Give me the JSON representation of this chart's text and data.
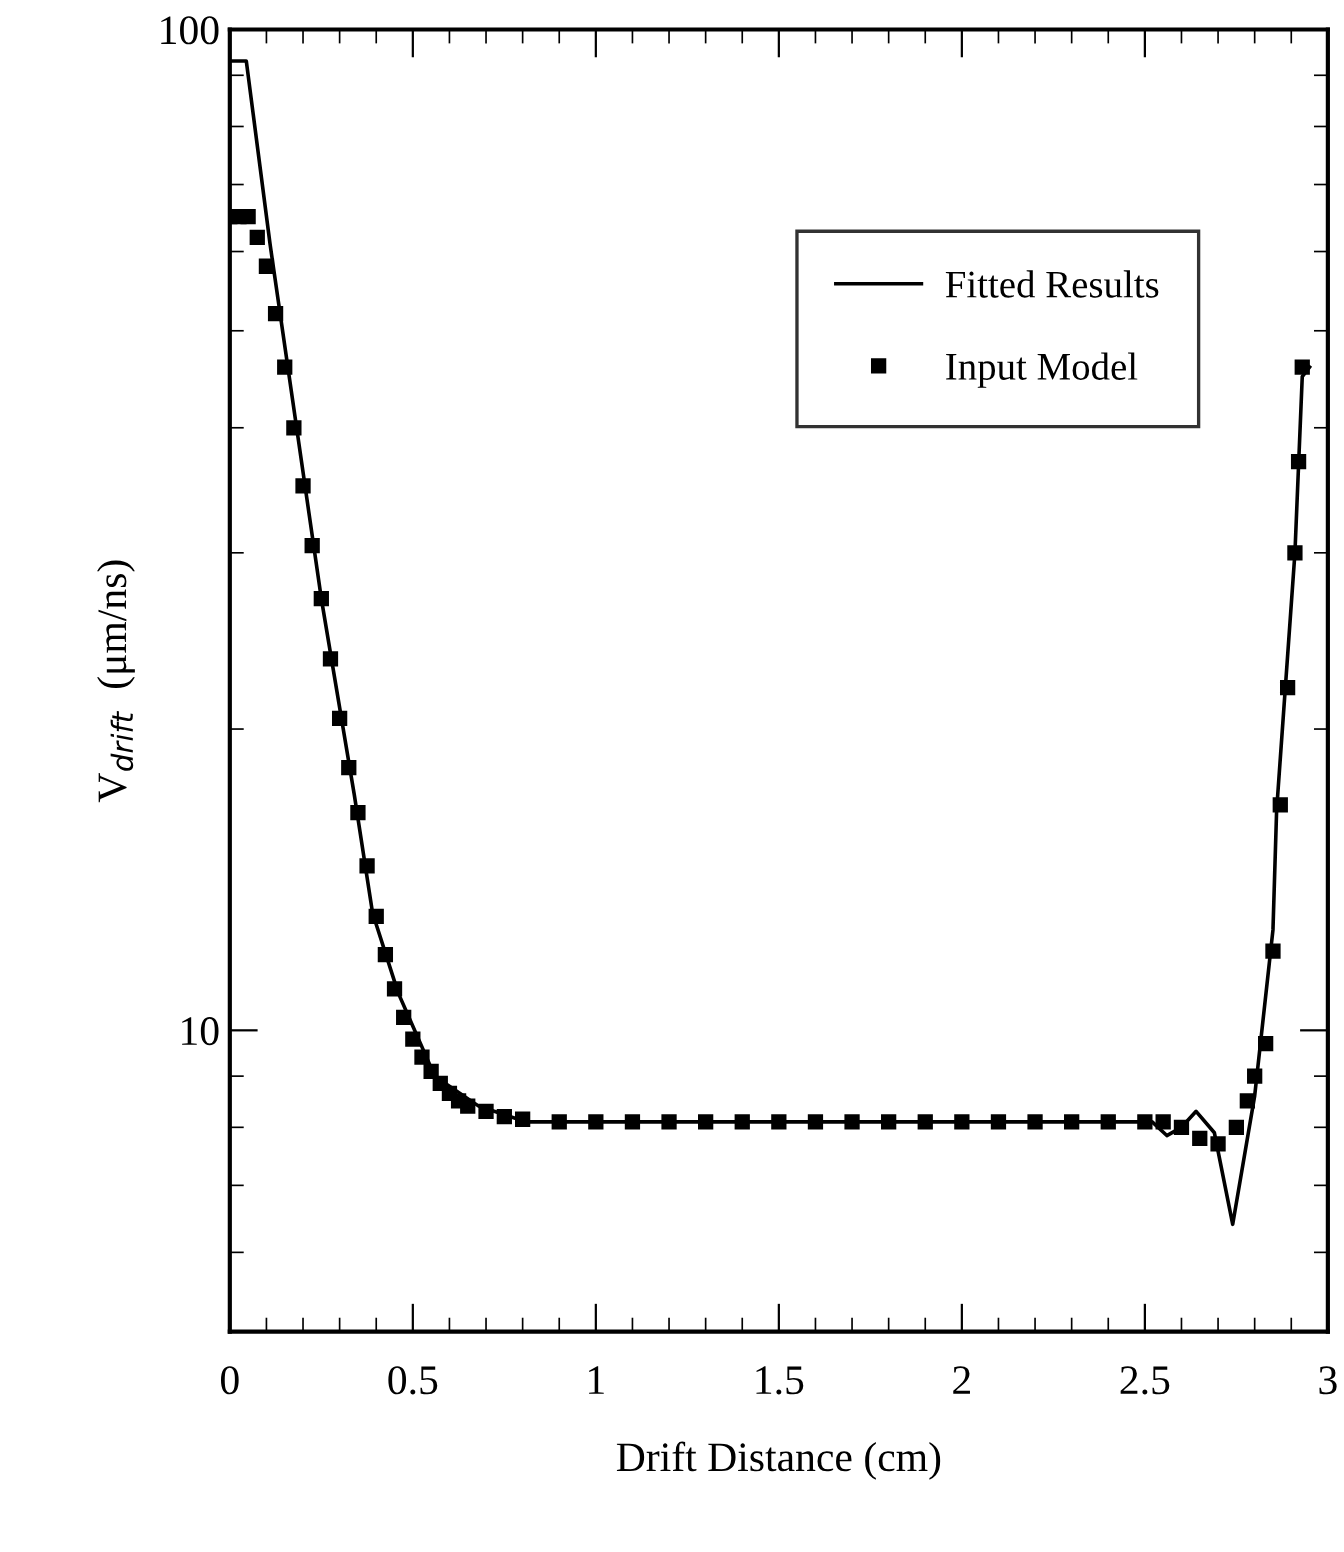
{
  "chart_data": {
    "type": "line",
    "xlabel": "Drift Distance (cm)",
    "ylabel": "V$_{drift}$  (μm/ns)",
    "log": "y",
    "xlim": [
      0,
      3
    ],
    "ylim": [
      5,
      100
    ],
    "xticks": [
      0,
      0.5,
      1,
      1.5,
      2,
      2.5,
      3
    ],
    "yticks": [
      {
        "value": 5,
        "label": null
      },
      10,
      100
    ],
    "grid": false,
    "legend": "top right",
    "line_style": "solid",
    "series": [
      {
        "name": "Fitted Results",
        "color": "#000000",
        "x": [
          0,
          0.045,
          0.11,
          0.25,
          0.34,
          0.39,
          0.46,
          0.56,
          0.68,
          0.81,
          2.52,
          2.56,
          2.6,
          2.64,
          2.69,
          2.74,
          2.8,
          2.85,
          2.86,
          2.91,
          2.93,
          2.95
        ],
        "values": [
          93,
          93,
          61,
          27,
          17.2,
          13.1,
          10.9,
          9.0,
          8.4,
          8.1,
          8.1,
          7.85,
          8.0,
          8.3,
          7.9,
          6.4,
          8.6,
          12.6,
          16.6,
          30,
          45,
          46
        ]
      },
      {
        "name": "Input Model",
        "type": "scatter",
        "marker": "square",
        "color": "#000000",
        "x": [
          0,
          0.025,
          0.05,
          0.075,
          0.1,
          0.125,
          0.15,
          0.175,
          0.2,
          0.225,
          0.25,
          0.275,
          0.3,
          0.325,
          0.35,
          0.375,
          0.4,
          0.425,
          0.45,
          0.475,
          0.5,
          0.525,
          0.55,
          0.575,
          0.6,
          0.625,
          0.65,
          0.7,
          0.75,
          0.8,
          0.9,
          1.0,
          1.1,
          1.2,
          1.3,
          1.4,
          1.5,
          1.6,
          1.7,
          1.8,
          1.9,
          2.0,
          2.1,
          2.2,
          2.3,
          2.4,
          2.5,
          2.55,
          2.6,
          2.65,
          2.7,
          2.75,
          2.78,
          2.8,
          2.83,
          2.85,
          2.87,
          2.89,
          2.91,
          2.92,
          2.93
        ],
        "values": [
          65,
          65,
          65,
          62,
          58,
          52,
          46,
          40,
          35,
          30.5,
          27,
          23.5,
          20.5,
          18.3,
          16.5,
          14.6,
          13,
          11.9,
          11,
          10.3,
          9.8,
          9.4,
          9.1,
          8.85,
          8.65,
          8.5,
          8.4,
          8.3,
          8.2,
          8.15,
          8.1,
          8.1,
          8.1,
          8.1,
          8.1,
          8.1,
          8.1,
          8.1,
          8.1,
          8.1,
          8.1,
          8.1,
          8.1,
          8.1,
          8.1,
          8.1,
          8.1,
          8.1,
          8.0,
          7.8,
          7.7,
          8.0,
          8.5,
          9.0,
          9.7,
          12,
          16.8,
          22,
          30,
          37,
          46
        ]
      }
    ]
  }
}
